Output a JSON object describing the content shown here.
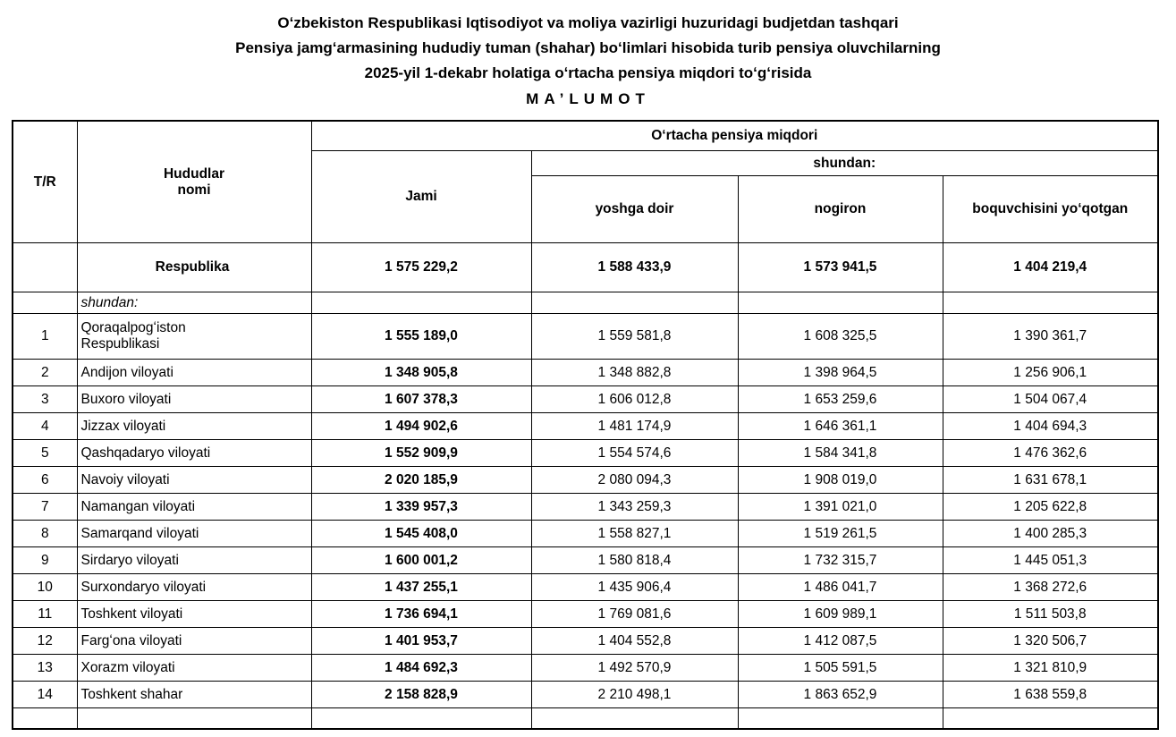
{
  "title": {
    "line1": "Oʻzbekiston Respublikasi Iqtisodiyot va moliya vazirligi huzuridagi budjetdan tashqari",
    "line2": "Pensiya jamgʻarmasining hududiy tuman (shahar) boʻlimlari hisobida turib pensiya oluvchilarning",
    "line3": "2025-yil 1-dekabr  holatiga oʻrtacha pensiya miqdori toʻgʻrisida",
    "line4": "MA’LUMOT"
  },
  "table": {
    "headers": {
      "tr": "T/R",
      "region": "Hududlar\nnomi",
      "group": "Oʻrtacha pensiya miqdori",
      "jami": "Jami",
      "shundan": "shundan:",
      "yoshga_doir": "yoshga doir",
      "nogiron": "nogiron",
      "boquvchisini": "boquvchisini yoʻqotgan"
    },
    "total_row": {
      "name": "Respublika",
      "jami": "1 575 229,2",
      "yoshga_doir": "1 588 433,9",
      "nogiron": "1 573 941,5",
      "boquvchisini": "1 404 219,4"
    },
    "label_row": "shundan:",
    "rows": [
      {
        "tr": "1",
        "name": "Qoraqalpogʻiston\nRespublikasi",
        "jami": "1 555 189,0",
        "yoshga_doir": "1 559 581,8",
        "nogiron": "1 608 325,5",
        "boquvchisini": "1 390 361,7"
      },
      {
        "tr": "2",
        "name": "Andijon viloyati",
        "jami": "1 348 905,8",
        "yoshga_doir": "1 348 882,8",
        "nogiron": "1 398 964,5",
        "boquvchisini": "1 256 906,1"
      },
      {
        "tr": "3",
        "name": "Buxoro viloyati",
        "jami": "1 607 378,3",
        "yoshga_doir": "1 606 012,8",
        "nogiron": "1 653 259,6",
        "boquvchisini": "1 504 067,4"
      },
      {
        "tr": "4",
        "name": "Jizzax viloyati",
        "jami": "1 494 902,6",
        "yoshga_doir": "1 481 174,9",
        "nogiron": "1 646 361,1",
        "boquvchisini": "1 404 694,3"
      },
      {
        "tr": "5",
        "name": "Qashqadaryo viloyati",
        "jami": "1 552 909,9",
        "yoshga_doir": "1 554 574,6",
        "nogiron": "1 584 341,8",
        "boquvchisini": "1 476 362,6"
      },
      {
        "tr": "6",
        "name": "Navoiy viloyati",
        "jami": "2 020 185,9",
        "yoshga_doir": "2 080 094,3",
        "nogiron": "1 908 019,0",
        "boquvchisini": "1 631 678,1"
      },
      {
        "tr": "7",
        "name": "Namangan viloyati",
        "jami": "1 339 957,3",
        "yoshga_doir": "1 343 259,3",
        "nogiron": "1 391 021,0",
        "boquvchisini": "1 205 622,8"
      },
      {
        "tr": "8",
        "name": "Samarqand viloyati",
        "jami": "1 545 408,0",
        "yoshga_doir": "1 558 827,1",
        "nogiron": "1 519 261,5",
        "boquvchisini": "1 400 285,3"
      },
      {
        "tr": "9",
        "name": "Sirdaryo viloyati",
        "jami": "1 600 001,2",
        "yoshga_doir": "1 580 818,4",
        "nogiron": "1 732 315,7",
        "boquvchisini": "1 445 051,3"
      },
      {
        "tr": "10",
        "name": "Surxondaryo viloyati",
        "jami": "1 437 255,1",
        "yoshga_doir": "1 435 906,4",
        "nogiron": "1 486 041,7",
        "boquvchisini": "1 368 272,6"
      },
      {
        "tr": "11",
        "name": "Toshkent viloyati",
        "jami": "1 736 694,1",
        "yoshga_doir": "1 769 081,6",
        "nogiron": "1 609 989,1",
        "boquvchisini": "1 511 503,8"
      },
      {
        "tr": "12",
        "name": "Fargʻona viloyati",
        "jami": "1 401 953,7",
        "yoshga_doir": "1 404 552,8",
        "nogiron": "1 412 087,5",
        "boquvchisini": "1 320 506,7"
      },
      {
        "tr": "13",
        "name": "Xorazm viloyati",
        "jami": "1 484 692,3",
        "yoshga_doir": "1 492 570,9",
        "nogiron": "1 505 591,5",
        "boquvchisini": "1 321 810,9"
      },
      {
        "tr": "14",
        "name": "Toshkent shahar",
        "jami": "2 158 828,9",
        "yoshga_doir": "2 210 498,1",
        "nogiron": "1 863 652,9",
        "boquvchisini": "1 638 559,8"
      }
    ]
  }
}
